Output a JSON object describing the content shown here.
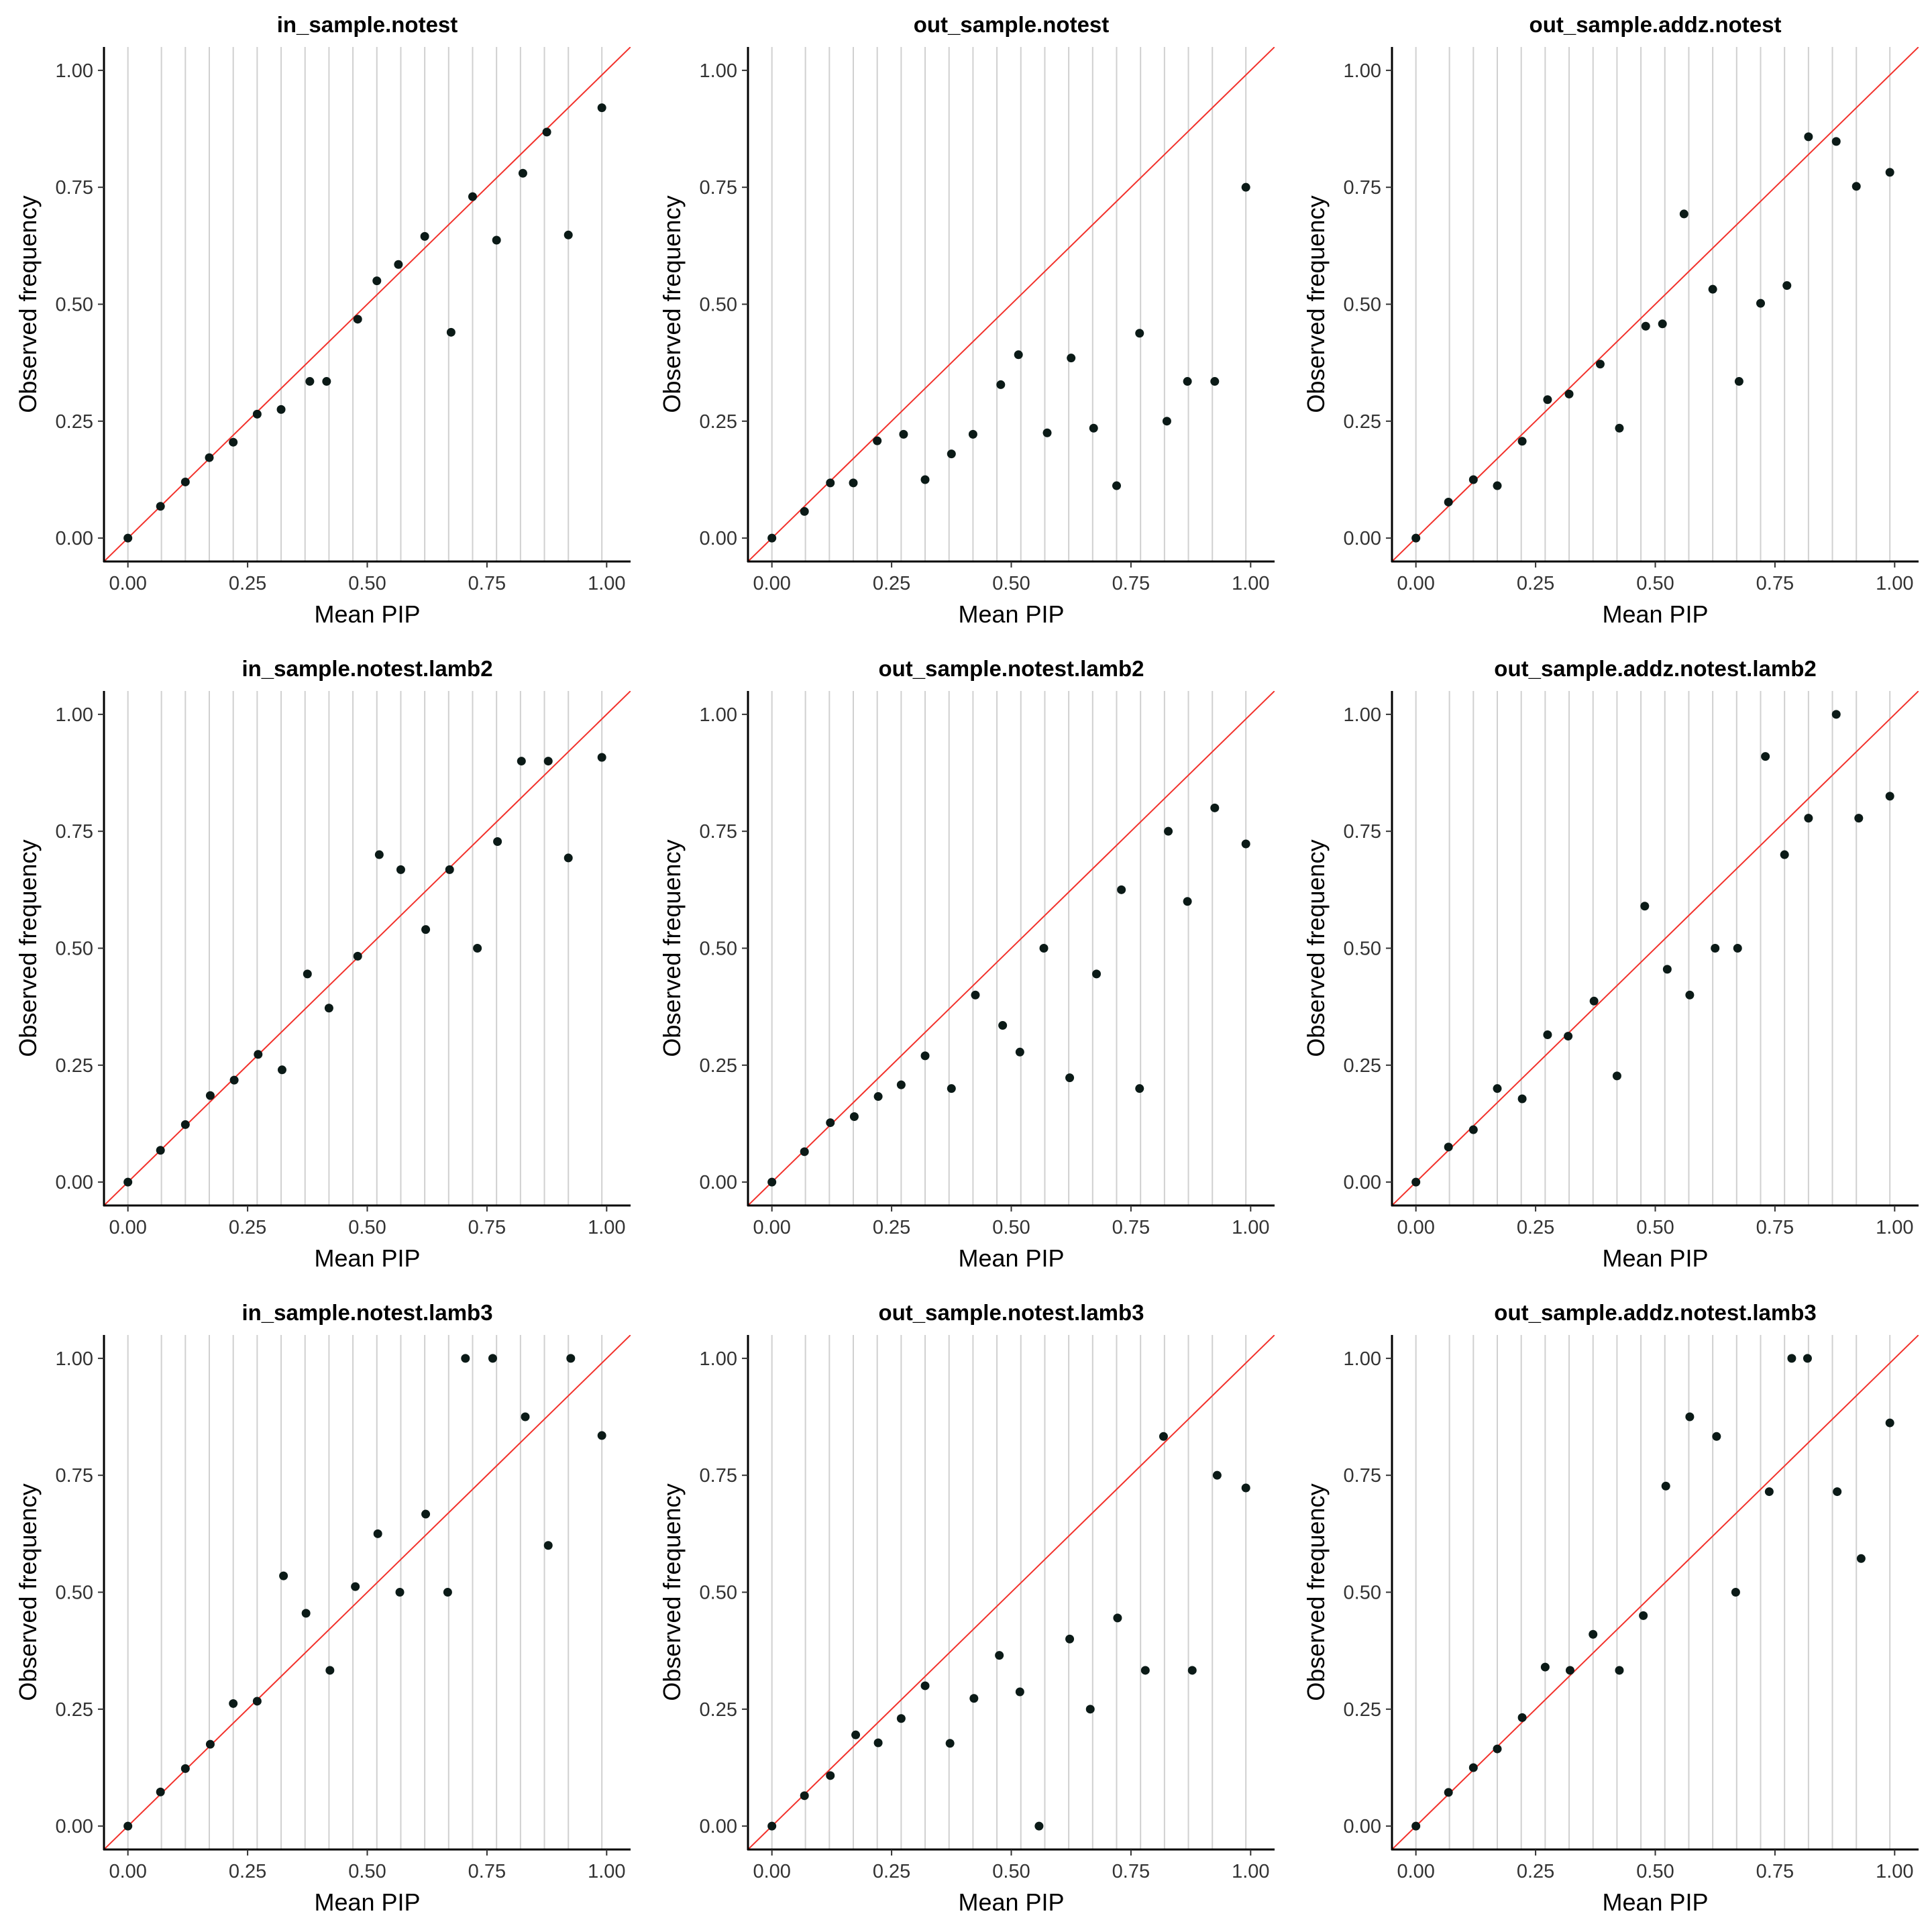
{
  "style": {
    "point_color": "#0b1a17",
    "ref_line_color": "#f2312b",
    "gridline_color": "#d0d0d0",
    "axis_color": "#000000"
  },
  "chart_data": [
    {
      "type": "scatter",
      "title": "in_sample.notest",
      "xlabel": "Mean PIP",
      "ylabel": "Observed frequency",
      "xlim": [
        -0.05,
        1.05
      ],
      "ylim": [
        -0.05,
        1.05
      ],
      "xticks": [
        "0.00",
        "0.25",
        "0.50",
        "0.75",
        "1.00"
      ],
      "yticks": [
        "0.00",
        "0.25",
        "0.50",
        "0.75",
        "1.00"
      ],
      "vgrid": [
        0.0,
        0.07,
        0.12,
        0.17,
        0.22,
        0.27,
        0.32,
        0.37,
        0.42,
        0.47,
        0.52,
        0.57,
        0.62,
        0.67,
        0.72,
        0.77,
        0.82,
        0.87,
        0.92,
        0.99
      ],
      "reference_line": "y = x",
      "points": [
        [
          0.0,
          0.0
        ],
        [
          0.068,
          0.068
        ],
        [
          0.12,
          0.12
        ],
        [
          0.17,
          0.172
        ],
        [
          0.22,
          0.205
        ],
        [
          0.27,
          0.265
        ],
        [
          0.32,
          0.275
        ],
        [
          0.38,
          0.335
        ],
        [
          0.415,
          0.335
        ],
        [
          0.48,
          0.468
        ],
        [
          0.52,
          0.55
        ],
        [
          0.565,
          0.585
        ],
        [
          0.62,
          0.645
        ],
        [
          0.675,
          0.44
        ],
        [
          0.72,
          0.73
        ],
        [
          0.77,
          0.637
        ],
        [
          0.825,
          0.78
        ],
        [
          0.875,
          0.868
        ],
        [
          0.92,
          0.648
        ],
        [
          0.99,
          0.92
        ]
      ]
    },
    {
      "type": "scatter",
      "title": "out_sample.notest",
      "xlabel": "Mean PIP",
      "ylabel": "Observed frequency",
      "xlim": [
        -0.05,
        1.05
      ],
      "ylim": [
        -0.05,
        1.05
      ],
      "xticks": [
        "0.00",
        "0.25",
        "0.50",
        "0.75",
        "1.00"
      ],
      "yticks": [
        "0.00",
        "0.25",
        "0.50",
        "0.75",
        "1.00"
      ],
      "vgrid": [
        0.0,
        0.07,
        0.12,
        0.17,
        0.22,
        0.27,
        0.32,
        0.37,
        0.42,
        0.47,
        0.52,
        0.57,
        0.62,
        0.67,
        0.72,
        0.77,
        0.82,
        0.87,
        0.92,
        0.99
      ],
      "reference_line": "y = x",
      "points": [
        [
          0.0,
          0.0
        ],
        [
          0.068,
          0.057
        ],
        [
          0.122,
          0.118
        ],
        [
          0.17,
          0.118
        ],
        [
          0.22,
          0.208
        ],
        [
          0.275,
          0.222
        ],
        [
          0.32,
          0.125
        ],
        [
          0.375,
          0.18
        ],
        [
          0.42,
          0.222
        ],
        [
          0.478,
          0.328
        ],
        [
          0.515,
          0.392
        ],
        [
          0.575,
          0.225
        ],
        [
          0.625,
          0.385
        ],
        [
          0.672,
          0.235
        ],
        [
          0.72,
          0.112
        ],
        [
          0.768,
          0.438
        ],
        [
          0.825,
          0.25
        ],
        [
          0.868,
          0.335
        ],
        [
          0.925,
          0.335
        ],
        [
          0.99,
          0.75
        ]
      ]
    },
    {
      "type": "scatter",
      "title": "out_sample.addz.notest",
      "xlabel": "Mean PIP",
      "ylabel": "Observed frequency",
      "xlim": [
        -0.05,
        1.05
      ],
      "ylim": [
        -0.05,
        1.05
      ],
      "xticks": [
        "0.00",
        "0.25",
        "0.50",
        "0.75",
        "1.00"
      ],
      "yticks": [
        "0.00",
        "0.25",
        "0.50",
        "0.75",
        "1.00"
      ],
      "vgrid": [
        0.0,
        0.07,
        0.12,
        0.17,
        0.22,
        0.27,
        0.32,
        0.37,
        0.42,
        0.47,
        0.52,
        0.57,
        0.62,
        0.67,
        0.72,
        0.77,
        0.82,
        0.87,
        0.92,
        0.99
      ],
      "reference_line": "y = x",
      "points": [
        [
          0.0,
          0.0
        ],
        [
          0.068,
          0.077
        ],
        [
          0.12,
          0.125
        ],
        [
          0.17,
          0.112
        ],
        [
          0.222,
          0.207
        ],
        [
          0.275,
          0.296
        ],
        [
          0.32,
          0.308
        ],
        [
          0.385,
          0.372
        ],
        [
          0.425,
          0.235
        ],
        [
          0.48,
          0.453
        ],
        [
          0.515,
          0.458
        ],
        [
          0.56,
          0.693
        ],
        [
          0.62,
          0.532
        ],
        [
          0.675,
          0.335
        ],
        [
          0.72,
          0.502
        ],
        [
          0.775,
          0.54
        ],
        [
          0.82,
          0.858
        ],
        [
          0.878,
          0.848
        ],
        [
          0.92,
          0.752
        ],
        [
          0.99,
          0.782
        ]
      ]
    },
    {
      "type": "scatter",
      "title": "in_sample.notest.lamb2",
      "xlabel": "Mean PIP",
      "ylabel": "Observed frequency",
      "xlim": [
        -0.05,
        1.05
      ],
      "ylim": [
        -0.05,
        1.05
      ],
      "xticks": [
        "0.00",
        "0.25",
        "0.50",
        "0.75",
        "1.00"
      ],
      "yticks": [
        "0.00",
        "0.25",
        "0.50",
        "0.75",
        "1.00"
      ],
      "vgrid": [
        0.0,
        0.07,
        0.12,
        0.17,
        0.22,
        0.27,
        0.32,
        0.37,
        0.42,
        0.47,
        0.52,
        0.57,
        0.62,
        0.67,
        0.72,
        0.77,
        0.82,
        0.87,
        0.92,
        0.99
      ],
      "reference_line": "y = x",
      "points": [
        [
          0.0,
          0.0
        ],
        [
          0.068,
          0.068
        ],
        [
          0.12,
          0.123
        ],
        [
          0.172,
          0.185
        ],
        [
          0.222,
          0.218
        ],
        [
          0.272,
          0.273
        ],
        [
          0.322,
          0.24
        ],
        [
          0.375,
          0.445
        ],
        [
          0.42,
          0.372
        ],
        [
          0.48,
          0.483
        ],
        [
          0.525,
          0.7
        ],
        [
          0.57,
          0.668
        ],
        [
          0.622,
          0.54
        ],
        [
          0.672,
          0.668
        ],
        [
          0.73,
          0.5
        ],
        [
          0.772,
          0.728
        ],
        [
          0.822,
          0.9
        ],
        [
          0.878,
          0.9
        ],
        [
          0.92,
          0.693
        ],
        [
          0.99,
          0.908
        ]
      ]
    },
    {
      "type": "scatter",
      "title": "out_sample.notest.lamb2",
      "xlabel": "Mean PIP",
      "ylabel": "Observed frequency",
      "xlim": [
        -0.05,
        1.05
      ],
      "ylim": [
        -0.05,
        1.05
      ],
      "xticks": [
        "0.00",
        "0.25",
        "0.50",
        "0.75",
        "1.00"
      ],
      "yticks": [
        "0.00",
        "0.25",
        "0.50",
        "0.75",
        "1.00"
      ],
      "vgrid": [
        0.0,
        0.07,
        0.12,
        0.17,
        0.22,
        0.27,
        0.32,
        0.37,
        0.42,
        0.47,
        0.52,
        0.57,
        0.62,
        0.67,
        0.72,
        0.77,
        0.82,
        0.87,
        0.92,
        0.99
      ],
      "reference_line": "y = x",
      "points": [
        [
          0.0,
          0.0
        ],
        [
          0.068,
          0.065
        ],
        [
          0.122,
          0.127
        ],
        [
          0.172,
          0.14
        ],
        [
          0.222,
          0.183
        ],
        [
          0.27,
          0.208
        ],
        [
          0.32,
          0.27
        ],
        [
          0.375,
          0.2
        ],
        [
          0.425,
          0.4
        ],
        [
          0.482,
          0.335
        ],
        [
          0.518,
          0.278
        ],
        [
          0.568,
          0.5
        ],
        [
          0.622,
          0.223
        ],
        [
          0.678,
          0.445
        ],
        [
          0.73,
          0.625
        ],
        [
          0.768,
          0.2
        ],
        [
          0.828,
          0.75
        ],
        [
          0.868,
          0.6
        ],
        [
          0.925,
          0.8
        ],
        [
          0.99,
          0.723
        ]
      ]
    },
    {
      "type": "scatter",
      "title": "out_sample.addz.notest.lamb2",
      "xlabel": "Mean PIP",
      "ylabel": "Observed frequency",
      "xlim": [
        -0.05,
        1.05
      ],
      "ylim": [
        -0.05,
        1.05
      ],
      "xticks": [
        "0.00",
        "0.25",
        "0.50",
        "0.75",
        "1.00"
      ],
      "yticks": [
        "0.00",
        "0.25",
        "0.50",
        "0.75",
        "1.00"
      ],
      "vgrid": [
        0.0,
        0.07,
        0.12,
        0.17,
        0.22,
        0.27,
        0.32,
        0.37,
        0.42,
        0.47,
        0.52,
        0.57,
        0.62,
        0.67,
        0.72,
        0.77,
        0.82,
        0.87,
        0.92,
        0.99
      ],
      "reference_line": "y = x",
      "points": [
        [
          0.0,
          0.0
        ],
        [
          0.068,
          0.075
        ],
        [
          0.12,
          0.112
        ],
        [
          0.17,
          0.2
        ],
        [
          0.222,
          0.178
        ],
        [
          0.275,
          0.315
        ],
        [
          0.318,
          0.312
        ],
        [
          0.372,
          0.387
        ],
        [
          0.42,
          0.227
        ],
        [
          0.478,
          0.59
        ],
        [
          0.525,
          0.455
        ],
        [
          0.572,
          0.4
        ],
        [
          0.625,
          0.5
        ],
        [
          0.672,
          0.5
        ],
        [
          0.73,
          0.91
        ],
        [
          0.77,
          0.7
        ],
        [
          0.82,
          0.778
        ],
        [
          0.878,
          1.0
        ],
        [
          0.925,
          0.778
        ],
        [
          0.99,
          0.825
        ]
      ]
    },
    {
      "type": "scatter",
      "title": "in_sample.notest.lamb3",
      "xlabel": "Mean PIP",
      "ylabel": "Observed frequency",
      "xlim": [
        -0.05,
        1.05
      ],
      "ylim": [
        -0.05,
        1.05
      ],
      "xticks": [
        "0.00",
        "0.25",
        "0.50",
        "0.75",
        "1.00"
      ],
      "yticks": [
        "0.00",
        "0.25",
        "0.50",
        "0.75",
        "1.00"
      ],
      "vgrid": [
        0.0,
        0.07,
        0.12,
        0.17,
        0.22,
        0.27,
        0.32,
        0.37,
        0.42,
        0.47,
        0.52,
        0.57,
        0.62,
        0.67,
        0.72,
        0.77,
        0.82,
        0.87,
        0.92,
        0.99
      ],
      "reference_line": "y = x",
      "points": [
        [
          0.0,
          0.0
        ],
        [
          0.068,
          0.073
        ],
        [
          0.12,
          0.123
        ],
        [
          0.172,
          0.175
        ],
        [
          0.22,
          0.262
        ],
        [
          0.27,
          0.267
        ],
        [
          0.325,
          0.535
        ],
        [
          0.372,
          0.455
        ],
        [
          0.422,
          0.333
        ],
        [
          0.475,
          0.512
        ],
        [
          0.522,
          0.625
        ],
        [
          0.568,
          0.5
        ],
        [
          0.622,
          0.667
        ],
        [
          0.668,
          0.5
        ],
        [
          0.705,
          1.0
        ],
        [
          0.762,
          1.0
        ],
        [
          0.83,
          0.875
        ],
        [
          0.878,
          0.6
        ],
        [
          0.925,
          1.0
        ],
        [
          0.99,
          0.835
        ]
      ]
    },
    {
      "type": "scatter",
      "title": "out_sample.notest.lamb3",
      "xlabel": "Mean PIP",
      "ylabel": "Observed frequency",
      "xlim": [
        -0.05,
        1.05
      ],
      "ylim": [
        -0.05,
        1.05
      ],
      "xticks": [
        "0.00",
        "0.25",
        "0.50",
        "0.75",
        "1.00"
      ],
      "yticks": [
        "0.00",
        "0.25",
        "0.50",
        "0.75",
        "1.00"
      ],
      "vgrid": [
        0.0,
        0.07,
        0.12,
        0.17,
        0.22,
        0.27,
        0.32,
        0.37,
        0.42,
        0.47,
        0.52,
        0.57,
        0.62,
        0.67,
        0.72,
        0.77,
        0.82,
        0.87,
        0.92,
        0.99
      ],
      "reference_line": "y = x",
      "points": [
        [
          0.0,
          0.0
        ],
        [
          0.068,
          0.065
        ],
        [
          0.122,
          0.108
        ],
        [
          0.175,
          0.195
        ],
        [
          0.222,
          0.178
        ],
        [
          0.27,
          0.23
        ],
        [
          0.32,
          0.3
        ],
        [
          0.372,
          0.177
        ],
        [
          0.422,
          0.273
        ],
        [
          0.475,
          0.365
        ],
        [
          0.518,
          0.287
        ],
        [
          0.558,
          0.0
        ],
        [
          0.622,
          0.4
        ],
        [
          0.665,
          0.25
        ],
        [
          0.722,
          0.445
        ],
        [
          0.78,
          0.333
        ],
        [
          0.818,
          0.833
        ],
        [
          0.878,
          0.333
        ],
        [
          0.93,
          0.75
        ],
        [
          0.99,
          0.723
        ]
      ]
    },
    {
      "type": "scatter",
      "title": "out_sample.addz.notest.lamb3",
      "xlabel": "Mean PIP",
      "ylabel": "Observed frequency",
      "xlim": [
        -0.05,
        1.05
      ],
      "ylim": [
        -0.05,
        1.05
      ],
      "xticks": [
        "0.00",
        "0.25",
        "0.50",
        "0.75",
        "1.00"
      ],
      "yticks": [
        "0.00",
        "0.25",
        "0.50",
        "0.75",
        "1.00"
      ],
      "vgrid": [
        0.0,
        0.07,
        0.12,
        0.17,
        0.22,
        0.27,
        0.32,
        0.37,
        0.42,
        0.47,
        0.52,
        0.57,
        0.62,
        0.67,
        0.72,
        0.77,
        0.82,
        0.87,
        0.92,
        0.99
      ],
      "reference_line": "y = x",
      "points": [
        [
          0.0,
          0.0
        ],
        [
          0.068,
          0.072
        ],
        [
          0.12,
          0.125
        ],
        [
          0.17,
          0.165
        ],
        [
          0.222,
          0.232
        ],
        [
          0.27,
          0.34
        ],
        [
          0.322,
          0.333
        ],
        [
          0.37,
          0.41
        ],
        [
          0.425,
          0.333
        ],
        [
          0.475,
          0.45
        ],
        [
          0.522,
          0.727
        ],
        [
          0.572,
          0.875
        ],
        [
          0.628,
          0.833
        ],
        [
          0.668,
          0.5
        ],
        [
          0.738,
          0.715
        ],
        [
          0.785,
          1.0
        ],
        [
          0.818,
          1.0
        ],
        [
          0.88,
          0.715
        ],
        [
          0.93,
          0.572
        ],
        [
          0.99,
          0.862
        ]
      ]
    }
  ]
}
